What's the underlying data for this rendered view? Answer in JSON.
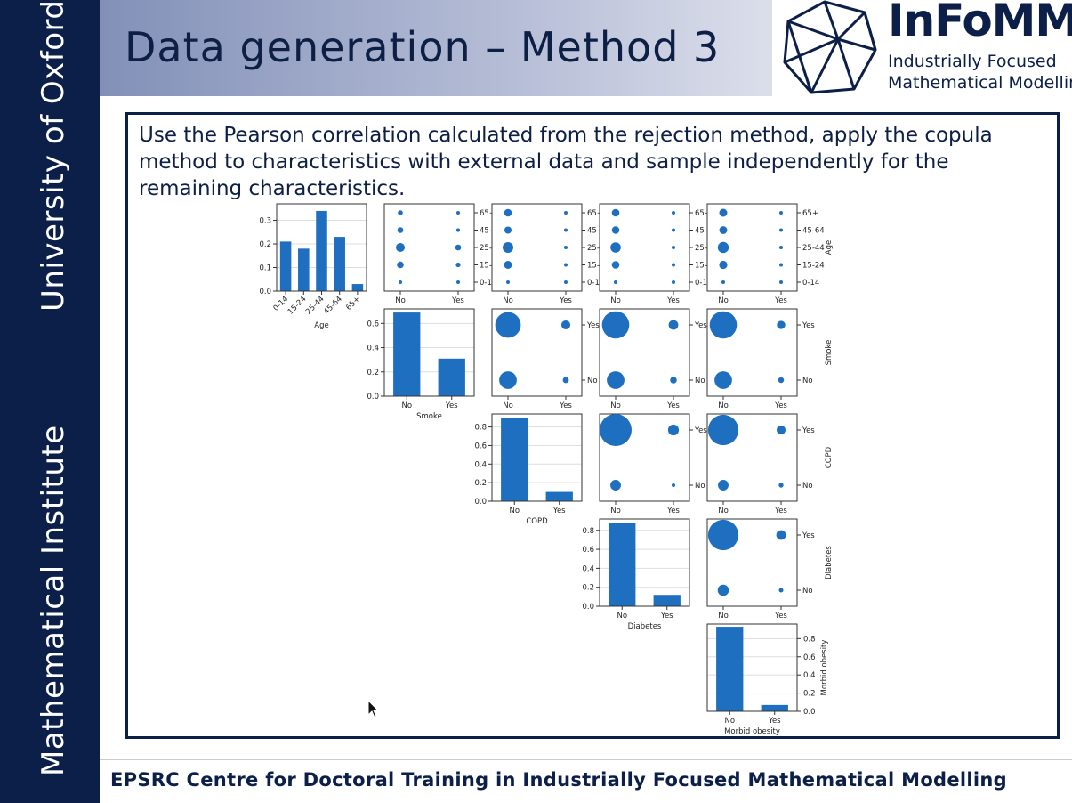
{
  "sidebar": {
    "top_text": "University of Oxford",
    "bottom_text": "Mathematical Institute"
  },
  "header": {
    "title": "Data generation – Method 3"
  },
  "logo": {
    "name": "InFoMM",
    "line1": "Industrially Focused",
    "line2": "Mathematical Modelling"
  },
  "content": {
    "description": "Use the Pearson correlation calculated from the rejection method, apply the copula method to characteristics with external data and sample independently for the remaining characteristics."
  },
  "footer": {
    "text": "EPSRC Centre for Doctoral Training in Industrially Focused Mathematical Modelling"
  },
  "colors": {
    "bar": "#1f6fc0",
    "navy": "#0b1f49"
  },
  "chart_data": {
    "type": "pair-grid",
    "variables": [
      {
        "name": "Age",
        "categories": [
          "0-14",
          "15-24",
          "25-44",
          "45-64",
          "65+"
        ],
        "values": [
          0.21,
          0.18,
          0.34,
          0.23,
          0.03
        ],
        "ylim": [
          0,
          0.37
        ],
        "yticks": [
          "0.0",
          "0.1",
          "0.2",
          "0.3"
        ],
        "tickvals": [
          0,
          0.1,
          0.2,
          0.3
        ]
      },
      {
        "name": "Smoke",
        "categories": [
          "No",
          "Yes"
        ],
        "values": [
          0.69,
          0.31
        ],
        "ylim": [
          0,
          0.72
        ],
        "yticks": [
          "0.0",
          "0.2",
          "0.4",
          "0.6"
        ],
        "tickvals": [
          0,
          0.2,
          0.4,
          0.6
        ]
      },
      {
        "name": "COPD",
        "categories": [
          "No",
          "Yes"
        ],
        "values": [
          0.9,
          0.1
        ],
        "ylim": [
          0,
          0.94
        ],
        "yticks": [
          "0.0",
          "0.2",
          "0.4",
          "0.6",
          "0.8"
        ],
        "tickvals": [
          0,
          0.2,
          0.4,
          0.6,
          0.8
        ]
      },
      {
        "name": "Diabetes",
        "categories": [
          "No",
          "Yes"
        ],
        "values": [
          0.88,
          0.12
        ],
        "ylim": [
          0,
          0.92
        ],
        "yticks": [
          "0.0",
          "0.2",
          "0.4",
          "0.6",
          "0.8"
        ],
        "tickvals": [
          0,
          0.2,
          0.4,
          0.6,
          0.8
        ]
      },
      {
        "name": "Morbid obesity",
        "categories": [
          "No",
          "Yes"
        ],
        "values": [
          0.93,
          0.07
        ],
        "ylim": [
          0,
          0.96
        ],
        "yticks": [
          "0.0",
          "0.2",
          "0.4",
          "0.6",
          "0.8"
        ],
        "tickvals": [
          0,
          0.2,
          0.4,
          0.6,
          0.8
        ]
      }
    ],
    "joint": [
      {
        "row": 0,
        "col": 1,
        "size": [
          [
            0.12,
            0.09
          ],
          [
            0.38,
            0.26
          ],
          [
            0.5,
            0.33
          ],
          [
            0.33,
            0.21
          ],
          [
            0.28,
            0.2
          ]
        ]
      },
      {
        "row": 0,
        "col": 2,
        "size": [
          [
            0.14,
            0.05
          ],
          [
            0.45,
            0.15
          ],
          [
            0.6,
            0.18
          ],
          [
            0.4,
            0.12
          ],
          [
            0.43,
            0.14
          ]
        ]
      },
      {
        "row": 0,
        "col": 3,
        "size": [
          [
            0.14,
            0.05
          ],
          [
            0.43,
            0.15
          ],
          [
            0.58,
            0.18
          ],
          [
            0.42,
            0.12
          ],
          [
            0.43,
            0.14
          ]
        ]
      },
      {
        "row": 0,
        "col": 4,
        "size": [
          [
            0.14,
            0.04
          ],
          [
            0.46,
            0.14
          ],
          [
            0.62,
            0.17
          ],
          [
            0.44,
            0.11
          ],
          [
            0.45,
            0.12
          ]
        ]
      },
      {
        "row": 1,
        "col": 2,
        "size": [
          [
            0.55,
            0.19
          ],
          [
            0.8,
            0.28
          ]
        ]
      },
      {
        "row": 1,
        "col": 3,
        "size": [
          [
            0.55,
            0.21
          ],
          [
            0.85,
            0.3
          ]
        ]
      },
      {
        "row": 1,
        "col": 4,
        "size": [
          [
            0.55,
            0.18
          ],
          [
            0.85,
            0.26
          ]
        ]
      },
      {
        "row": 2,
        "col": 3,
        "size": [
          [
            0.33,
            0.1
          ],
          [
            1.0,
            0.34
          ]
        ]
      },
      {
        "row": 2,
        "col": 4,
        "size": [
          [
            0.33,
            0.15
          ],
          [
            0.95,
            0.28
          ]
        ]
      },
      {
        "row": 3,
        "col": 4,
        "size": [
          [
            0.35,
            0.14
          ],
          [
            0.95,
            0.3
          ]
        ]
      }
    ]
  }
}
